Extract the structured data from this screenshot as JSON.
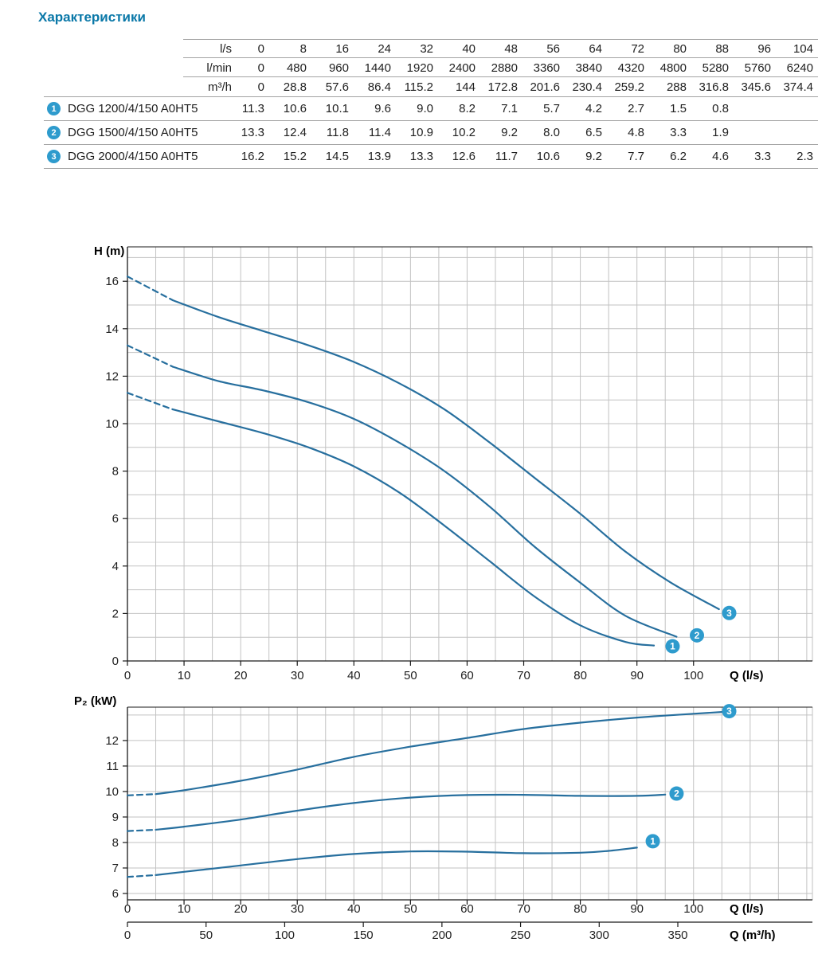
{
  "title": "Характеристики",
  "colors": {
    "accent_title": "#0a78a8",
    "curve": "#276f9e",
    "badge": "#2e9bcd",
    "grid": "#c2c2c2",
    "axis": "#1a1a1a",
    "table_line": "#a3a3a3"
  },
  "table": {
    "header_rows": [
      {
        "unit": "l/s",
        "values": [
          "0",
          "8",
          "16",
          "24",
          "32",
          "40",
          "48",
          "56",
          "64",
          "72",
          "80",
          "88",
          "96",
          "104"
        ]
      },
      {
        "unit": "l/min",
        "values": [
          "0",
          "480",
          "960",
          "1440",
          "1920",
          "2400",
          "2880",
          "3360",
          "3840",
          "4320",
          "4800",
          "5280",
          "5760",
          "6240"
        ]
      },
      {
        "unit": "m³/h",
        "values": [
          "0",
          "28.8",
          "57.6",
          "86.4",
          "115.2",
          "144",
          "172.8",
          "201.6",
          "230.4",
          "259.2",
          "288",
          "316.8",
          "345.6",
          "374.4"
        ]
      }
    ],
    "rows": [
      {
        "badge": "1",
        "model": "DGG 1200/4/150 A0HT5",
        "values": [
          "11.3",
          "10.6",
          "10.1",
          "9.6",
          "9.0",
          "8.2",
          "7.1",
          "5.7",
          "4.2",
          "2.7",
          "1.5",
          "0.8",
          "",
          ""
        ]
      },
      {
        "badge": "2",
        "model": "DGG 1500/4/150 A0HT5",
        "values": [
          "13.3",
          "12.4",
          "11.8",
          "11.4",
          "10.9",
          "10.2",
          "9.2",
          "8.0",
          "6.5",
          "4.8",
          "3.3",
          "1.9",
          "",
          ""
        ]
      },
      {
        "badge": "3",
        "model": "DGG 2000/4/150 A0HT5",
        "values": [
          "16.2",
          "15.2",
          "14.5",
          "13.9",
          "13.3",
          "12.6",
          "11.7",
          "10.6",
          "9.2",
          "7.7",
          "6.2",
          "4.6",
          "3.3",
          "2.3"
        ]
      }
    ]
  },
  "chart_data": [
    {
      "type": "line",
      "xlabel": "Q (l/s)",
      "ylabel": "H (m)",
      "xlim": [
        0,
        121
      ],
      "ylim": [
        0,
        17.45
      ],
      "x_ticks": [
        0,
        10,
        20,
        30,
        40,
        50,
        60,
        70,
        80,
        90,
        100
      ],
      "y_ticks": [
        0,
        2,
        4,
        6,
        8,
        10,
        12,
        14,
        16
      ],
      "grid": {
        "x_step": 5,
        "y_step": 1
      },
      "series": [
        {
          "name": "DGG 1200/4/150 A0HT5",
          "label": "1",
          "dash_points": 2,
          "x": [
            0,
            8,
            16,
            24,
            32,
            40,
            48,
            56,
            64,
            72,
            80,
            88,
            93
          ],
          "y": [
            11.3,
            10.6,
            10.1,
            9.6,
            9.0,
            8.2,
            7.1,
            5.7,
            4.2,
            2.7,
            1.5,
            0.8,
            0.65
          ],
          "badge": {
            "x": 96.3,
            "y": 0.62
          }
        },
        {
          "name": "DGG 1500/4/150 A0HT5",
          "label": "2",
          "dash_points": 2,
          "x": [
            0,
            8,
            16,
            24,
            32,
            40,
            48,
            56,
            64,
            72,
            80,
            88,
            97
          ],
          "y": [
            13.3,
            12.4,
            11.8,
            11.4,
            10.9,
            10.2,
            9.2,
            8.0,
            6.5,
            4.8,
            3.3,
            1.9,
            1.02
          ],
          "badge": {
            "x": 100.6,
            "y": 1.08
          }
        },
        {
          "name": "DGG 2000/4/150 A0HT5",
          "label": "3",
          "dash_points": 2,
          "x": [
            0,
            8,
            16,
            24,
            32,
            40,
            48,
            56,
            64,
            72,
            80,
            88,
            96,
            104.5
          ],
          "y": [
            16.2,
            15.2,
            14.5,
            13.9,
            13.3,
            12.6,
            11.7,
            10.6,
            9.2,
            7.7,
            6.2,
            4.6,
            3.3,
            2.18
          ],
          "badge": {
            "x": 106.3,
            "y": 2.02
          }
        }
      ]
    },
    {
      "type": "line",
      "xlabel": "Q (l/s)",
      "ylabel": "P₂ (kW)",
      "x2label": "Q (m³/h)",
      "x2_factor": 3.6,
      "xlim": [
        0,
        121
      ],
      "ylim": [
        5.75,
        13.31
      ],
      "x_ticks": [
        0,
        10,
        20,
        30,
        40,
        50,
        60,
        70,
        80,
        90,
        100
      ],
      "y_ticks": [
        6,
        7,
        8,
        9,
        10,
        11,
        12
      ],
      "x2_ticks": [
        0,
        50,
        100,
        150,
        200,
        250,
        300,
        350
      ],
      "grid": {
        "x_step": 5,
        "y_step": 1
      },
      "series": [
        {
          "name": "DGG 1200/4/150 A0HT5",
          "label": "1",
          "dash_points": 2,
          "x": [
            0,
            5,
            10,
            20,
            30,
            40,
            50,
            60,
            70,
            80,
            85,
            90
          ],
          "y": [
            6.65,
            6.72,
            6.85,
            7.1,
            7.35,
            7.55,
            7.65,
            7.64,
            7.58,
            7.6,
            7.67,
            7.8
          ],
          "badge": {
            "x": 92.8,
            "y": 8.05
          }
        },
        {
          "name": "DGG 1500/4/150 A0HT5",
          "label": "2",
          "dash_points": 2,
          "x": [
            0,
            5,
            10,
            20,
            30,
            40,
            50,
            60,
            70,
            80,
            90,
            95
          ],
          "y": [
            8.45,
            8.5,
            8.62,
            8.9,
            9.25,
            9.55,
            9.76,
            9.86,
            9.87,
            9.83,
            9.83,
            9.88
          ],
          "badge": {
            "x": 97,
            "y": 9.92
          }
        },
        {
          "name": "DGG 2000/4/150 A0HT5",
          "label": "3",
          "dash_points": 2,
          "x": [
            0,
            5,
            10,
            20,
            30,
            40,
            50,
            60,
            70,
            80,
            90,
            100,
            105
          ],
          "y": [
            9.85,
            9.9,
            10.05,
            10.42,
            10.86,
            11.36,
            11.76,
            12.1,
            12.45,
            12.7,
            12.9,
            13.05,
            13.12
          ],
          "badge": {
            "x": 106.3,
            "y": 13.15
          }
        }
      ]
    }
  ]
}
